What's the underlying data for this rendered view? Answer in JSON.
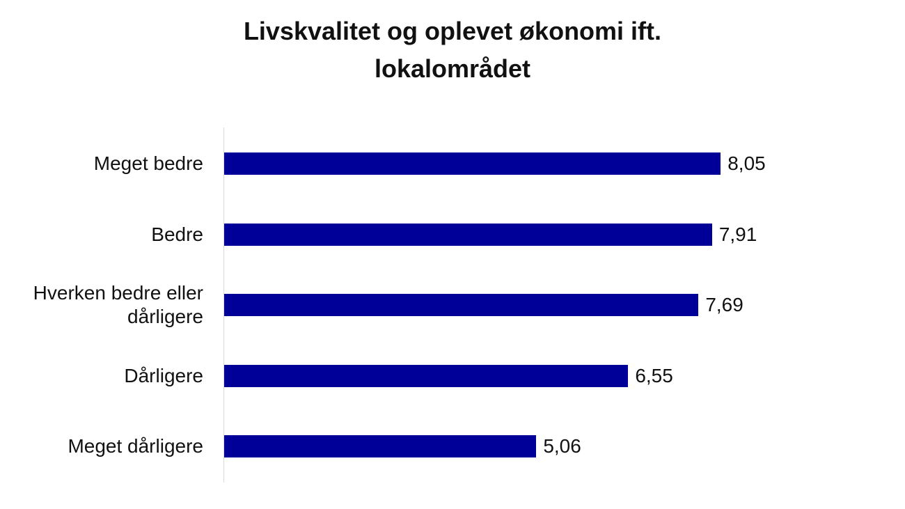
{
  "chart_data": {
    "type": "bar",
    "orientation": "horizontal",
    "title": "Livskvalitet og oplevet økonomi ift. lokalområdet",
    "categories": [
      "Meget bedre",
      "Bedre",
      "Hverken bedre eller dårligere",
      "Dårligere",
      "Meget dårligere"
    ],
    "values": [
      8.05,
      7.91,
      7.69,
      6.55,
      5.06
    ],
    "value_labels": [
      "8,05",
      "7,91",
      "7,69",
      "6,55",
      "5,06"
    ],
    "color": "#000099"
  }
}
